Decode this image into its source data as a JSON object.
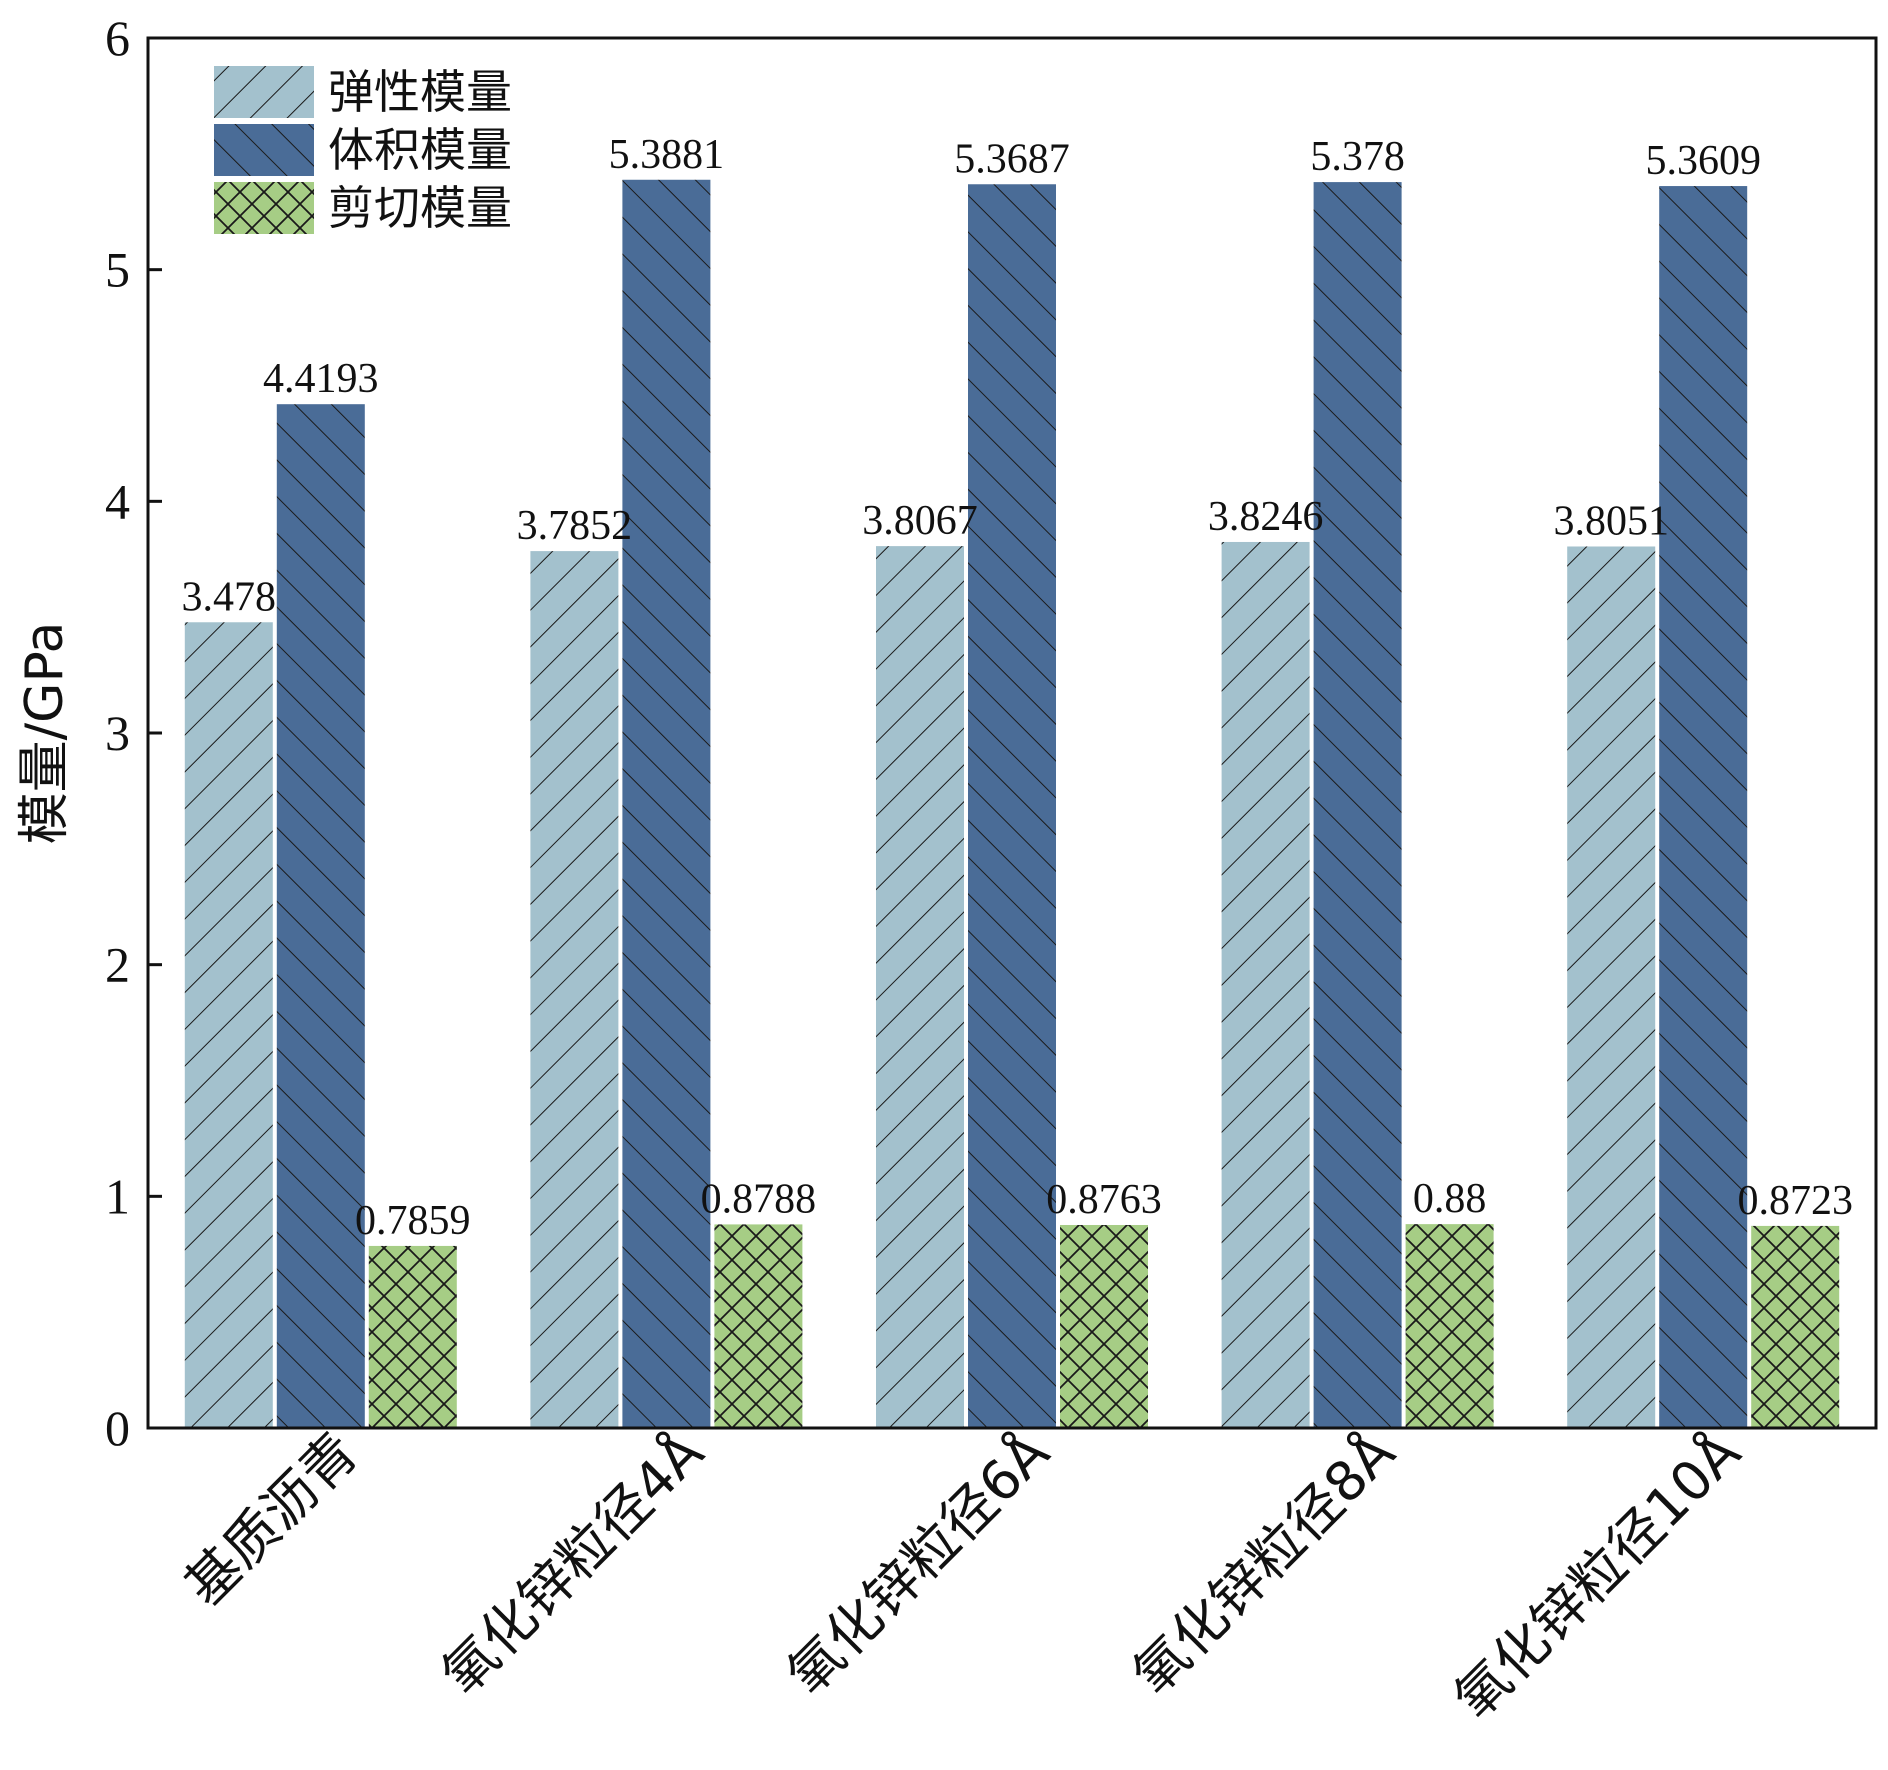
{
  "chart_data": {
    "type": "bar",
    "categories": [
      "基质沥青",
      "氧化锌粒径4Å",
      "氧化锌粒径6Å",
      "氧化锌粒径8Å",
      "氧化锌粒径10Å"
    ],
    "series": [
      {
        "name": "弹性模量",
        "values": [
          3.478,
          3.7852,
          3.8067,
          3.8246,
          3.8051
        ],
        "labels": [
          "3.478",
          "3.7852",
          "3.8067",
          "3.8246",
          "3.8051"
        ],
        "color": "#a3c1cd",
        "pattern": "forward-diagonal"
      },
      {
        "name": "体积模量",
        "values": [
          4.4193,
          5.3881,
          5.3687,
          5.378,
          5.3609
        ],
        "labels": [
          "4.4193",
          "5.3881",
          "5.3687",
          "5.378",
          "5.3609"
        ],
        "color": "#4a6c97",
        "pattern": "back-diagonal"
      },
      {
        "name": "剪切模量",
        "values": [
          0.7859,
          0.8788,
          0.8763,
          0.88,
          0.8723
        ],
        "labels": [
          "0.7859",
          "0.8788",
          "0.8763",
          "0.88",
          "0.8723"
        ],
        "color": "#a6cd85",
        "pattern": "crosshatch"
      }
    ],
    "ylabel": "模量/GPa",
    "ylim": [
      0,
      6
    ],
    "yticks": [
      "0",
      "1",
      "2",
      "3",
      "4",
      "5",
      "6"
    ],
    "legend_position": "top-left",
    "grid": false
  }
}
